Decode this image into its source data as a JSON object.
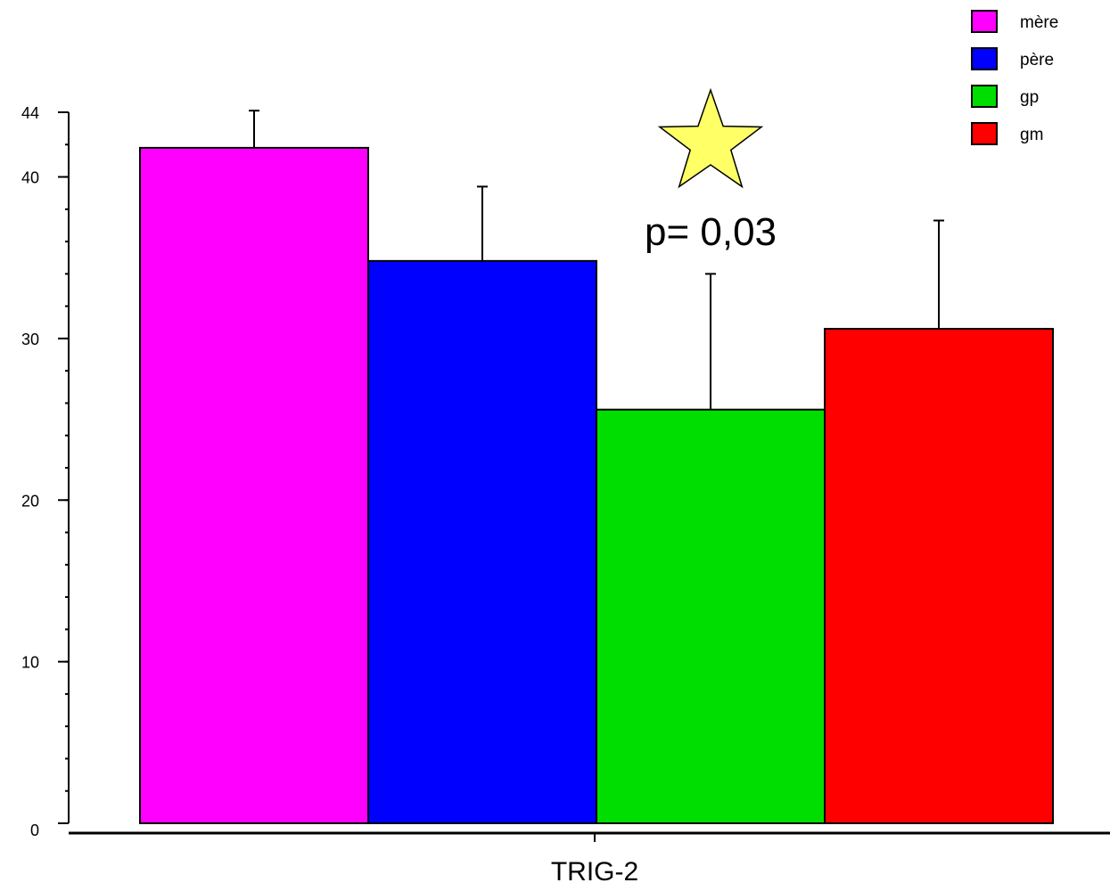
{
  "chart_data": {
    "type": "bar",
    "categories": [
      "TRIG-2"
    ],
    "series": [
      {
        "name": "mère",
        "values": [
          41.8
        ],
        "error": [
          2.3
        ],
        "color": "#ff00ff"
      },
      {
        "name": "père",
        "values": [
          34.8
        ],
        "error": [
          4.6
        ],
        "color": "#0000ff"
      },
      {
        "name": "gp",
        "values": [
          25.6
        ],
        "error": [
          8.4
        ],
        "color": "#00dd00"
      },
      {
        "name": "gm",
        "values": [
          30.6
        ],
        "error": [
          6.7
        ],
        "color": "#ff0000"
      }
    ],
    "title": "",
    "xlabel": "",
    "ylabel": "",
    "ylim": [
      0,
      44
    ],
    "yticks": [
      {
        "value": 0,
        "label": "0"
      },
      {
        "value": 10,
        "label": "10"
      },
      {
        "value": 20,
        "label": "20"
      },
      {
        "value": 30,
        "label": "30"
      },
      {
        "value": 40,
        "label": "40"
      },
      {
        "value": 44,
        "label": "44"
      }
    ],
    "minor_tick_step": 2,
    "grid": false,
    "legend_position": "top-right",
    "annotation": {
      "text": "p= 0,03",
      "symbol": "star",
      "symbol_color": "#ffff66",
      "target_series": "gp"
    }
  }
}
